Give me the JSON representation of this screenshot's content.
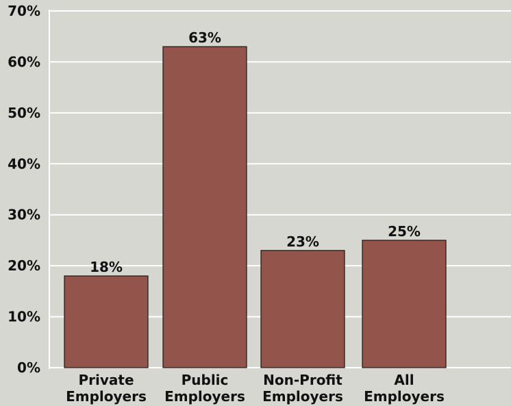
{
  "chart_data": {
    "type": "bar",
    "categories": [
      [
        "Private",
        "Employers"
      ],
      [
        "Public",
        "Employers"
      ],
      [
        "Non-Profit",
        "Employers"
      ],
      [
        "All",
        "Employers"
      ]
    ],
    "values": [
      18,
      63,
      23,
      25
    ],
    "data_labels": [
      "18%",
      "63%",
      "23%",
      "25%"
    ],
    "ylim": [
      0,
      70
    ],
    "yticks": [
      0,
      10,
      20,
      30,
      40,
      50,
      60,
      70
    ],
    "ytick_labels": [
      "0%",
      "10%",
      "20%",
      "30%",
      "40%",
      "50%",
      "60%",
      "70%"
    ],
    "title": "",
    "xlabel": "",
    "ylabel": "",
    "grid": true,
    "legend": "none",
    "colors": {
      "background": "#d6d7d0",
      "bar": "#93554b",
      "bar_outline": "#1f1410",
      "grid": "#ffffff",
      "text": "#111111"
    }
  }
}
